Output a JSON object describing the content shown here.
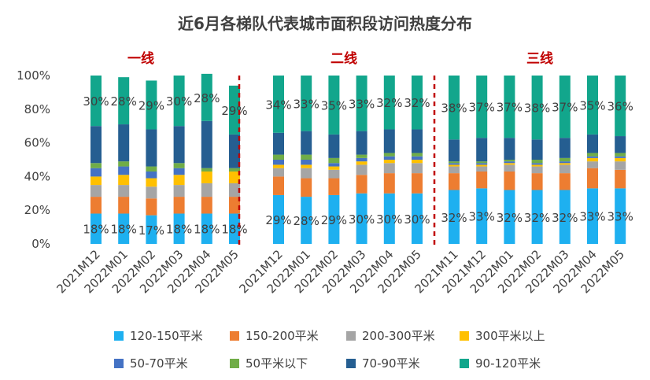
{
  "chart_data": {
    "type": "bar",
    "stacked": true,
    "title": "近6月各梯队代表城市面积段访问热度分布",
    "yticks": [
      "0%",
      "20%",
      "40%",
      "60%",
      "80%",
      "100%"
    ],
    "ylim": [
      0,
      100
    ],
    "groups": [
      {
        "name": "一线",
        "categories": [
          "2021M12",
          "2022M01",
          "2022M02",
          "2022M03",
          "2022M04",
          "2022M05"
        ]
      },
      {
        "name": "二线",
        "categories": [
          "2021M12",
          "2022M01",
          "2022M02",
          "2022M03",
          "2022M04",
          "2022M05"
        ]
      },
      {
        "name": "三线",
        "categories": [
          "2021M11",
          "2021M12",
          "2022M01",
          "2022M02",
          "2022M03",
          "2022M04",
          "2022M05"
        ]
      }
    ],
    "series": [
      {
        "name": "120-150平米",
        "color": "#1EB0F0",
        "values": [
          18,
          18,
          17,
          18,
          18,
          18,
          29,
          28,
          29,
          30,
          30,
          30,
          32,
          33,
          32,
          32,
          32,
          33,
          33
        ]
      },
      {
        "name": "150-200平米",
        "color": "#ED7D31",
        "values": [
          10,
          10,
          10,
          10,
          10,
          10,
          11,
          11,
          10,
          11,
          12,
          12,
          10,
          10,
          11,
          10,
          10,
          12,
          11
        ]
      },
      {
        "name": "200-300平米",
        "color": "#A5A5A5",
        "values": [
          7,
          7,
          7,
          7,
          8,
          8,
          5,
          6,
          5,
          6,
          6,
          6,
          4,
          3,
          4,
          4,
          5,
          4,
          5
        ]
      },
      {
        "name": "300平米以上",
        "color": "#FFC000",
        "values": [
          5,
          6,
          5,
          6,
          7,
          7,
          2,
          2,
          2,
          2,
          2,
          2,
          1,
          1,
          1,
          1,
          1,
          2,
          2
        ]
      },
      {
        "name": "50-70平米",
        "color": "#4472C4",
        "values": [
          5,
          5,
          4,
          4,
          0,
          0,
          3,
          3,
          2,
          2,
          2,
          2,
          1,
          1,
          1,
          1,
          1,
          1,
          1
        ]
      },
      {
        "name": "50平米以下",
        "color": "#70AD47",
        "values": [
          3,
          3,
          3,
          3,
          2,
          2,
          3,
          3,
          3,
          2,
          2,
          2,
          1,
          1,
          1,
          2,
          2,
          2,
          2
        ]
      },
      {
        "name": "70-90平米",
        "color": "#255E91",
        "values": [
          22,
          22,
          22,
          22,
          28,
          20,
          13,
          14,
          14,
          14,
          14,
          14,
          13,
          14,
          13,
          12,
          12,
          11,
          10
        ]
      },
      {
        "name": "90-120平米",
        "color": "#12A68C",
        "values": [
          30,
          28,
          29,
          30,
          28,
          29,
          34,
          33,
          35,
          33,
          32,
          32,
          38,
          37,
          37,
          38,
          37,
          35,
          36
        ]
      }
    ],
    "labeled_series": [
      "120-150平米",
      "90-120平米"
    ],
    "legend_position": "bottom"
  }
}
